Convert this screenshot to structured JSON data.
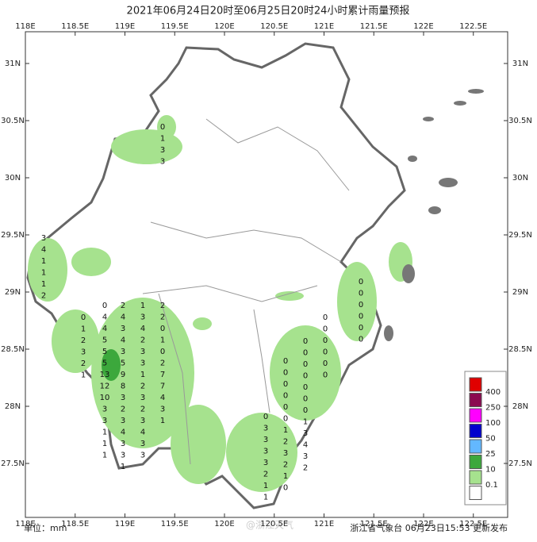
{
  "title": "2021年06月24日20时至06月25日20时24小时累计雨量预报",
  "lon_ticks": [
    {
      "value": 118,
      "label": "118E"
    },
    {
      "value": 118.5,
      "label": "118.5E"
    },
    {
      "value": 119,
      "label": "119E"
    },
    {
      "value": 119.5,
      "label": "119.5E"
    },
    {
      "value": 120,
      "label": "120E"
    },
    {
      "value": 120.5,
      "label": "120.5E"
    },
    {
      "value": 121,
      "label": "121E"
    },
    {
      "value": 121.5,
      "label": "121.5E"
    },
    {
      "value": 122,
      "label": "122E"
    },
    {
      "value": 122.5,
      "label": "122.5E"
    }
  ],
  "lat_ticks": [
    {
      "value": 31,
      "label": "31N"
    },
    {
      "value": 30.5,
      "label": "30.5N"
    },
    {
      "value": 30,
      "label": "30N"
    },
    {
      "value": 29.5,
      "label": "29.5N"
    },
    {
      "value": 29,
      "label": "29N"
    },
    {
      "value": 28.5,
      "label": "28.5N"
    },
    {
      "value": 28,
      "label": "28N"
    },
    {
      "value": 27.5,
      "label": "27.5N"
    }
  ],
  "legend": {
    "labels": [
      "400",
      "250",
      "100",
      "50",
      "25",
      "10",
      "0.1"
    ],
    "colors": [
      "#e00000",
      "#8b0a50",
      "#ff00ff",
      "#0000cd",
      "#63b8ff",
      "#3ca83c",
      "#a6e28e",
      "#ffffff"
    ]
  },
  "station_columns": [
    [
      0,
      4,
      4,
      5,
      5,
      5,
      13,
      12,
      10,
      3,
      3,
      1,
      1,
      1
    ],
    [
      2,
      4,
      3,
      4,
      3,
      5,
      9,
      8,
      3,
      2,
      3,
      4,
      3,
      3,
      1
    ],
    [
      1,
      3,
      4,
      2,
      3,
      3,
      1,
      2,
      3,
      2,
      3,
      4,
      3,
      3
    ],
    [
      2,
      2,
      0,
      1,
      0,
      2,
      7,
      7,
      4,
      3,
      1
    ],
    [
      0,
      1,
      2,
      3,
      2,
      1
    ],
    [
      0,
      3,
      3,
      3,
      3,
      2,
      1,
      1
    ],
    [
      0,
      0,
      0,
      0,
      0,
      0,
      1,
      2,
      3,
      2,
      1,
      0
    ],
    [
      0,
      0,
      0,
      0,
      0,
      0,
      0,
      1,
      3,
      4,
      3,
      2
    ],
    [
      0,
      0,
      0,
      0,
      0,
      0
    ],
    [
      0,
      0,
      0,
      0,
      0,
      0
    ],
    [
      0,
      1,
      3,
      3
    ],
    [
      3,
      4,
      1,
      1,
      1,
      2
    ]
  ],
  "unit": "单位：mm",
  "watermark": "@浙江天气",
  "source": "浙江省气象台 06月23日15:53 更新发布"
}
